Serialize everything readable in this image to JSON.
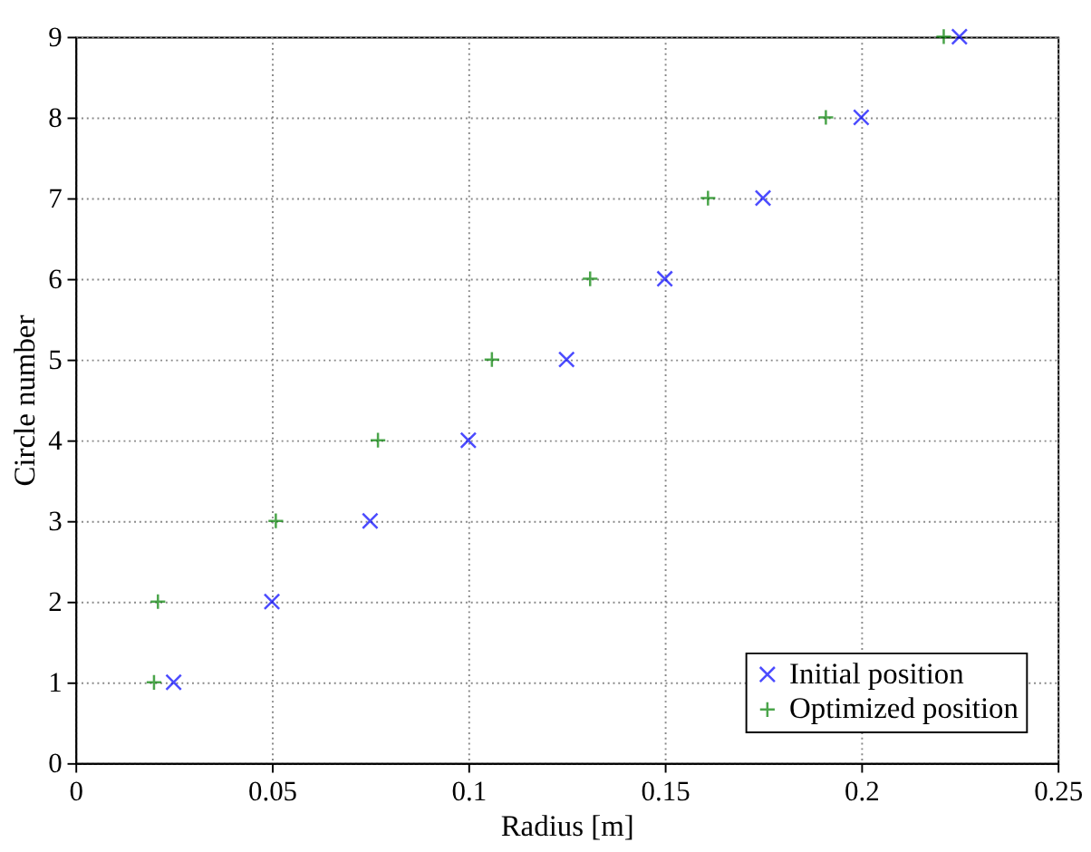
{
  "chart_data": {
    "type": "scatter",
    "xlabel": "Radius [m]",
    "ylabel": "Circle number",
    "series": [
      {
        "name": "Initial position",
        "color": "#0000ff",
        "marker": "x",
        "x": [
          0.025,
          0.05,
          0.075,
          0.1,
          0.125,
          0.15,
          0.175,
          0.2,
          0.225
        ],
        "values": [
          1,
          2,
          3,
          4,
          5,
          6,
          7,
          8,
          9
        ]
      },
      {
        "name": "Optimized position",
        "color": "#008000",
        "marker": "plus",
        "x": [
          0.02,
          0.021,
          0.051,
          0.077,
          0.106,
          0.131,
          0.161,
          0.191,
          0.221
        ],
        "values": [
          1,
          2,
          3,
          4,
          5,
          6,
          7,
          8,
          9
        ]
      }
    ],
    "xlim": [
      0,
      0.25
    ],
    "xticks": [
      0,
      0.05,
      0.1,
      0.15,
      0.2,
      0.25
    ],
    "ylim": [
      0,
      9
    ],
    "yticks": [
      0,
      1,
      2,
      3,
      4,
      5,
      6,
      7,
      8,
      9
    ],
    "grid": true,
    "legend": "bottom right"
  }
}
